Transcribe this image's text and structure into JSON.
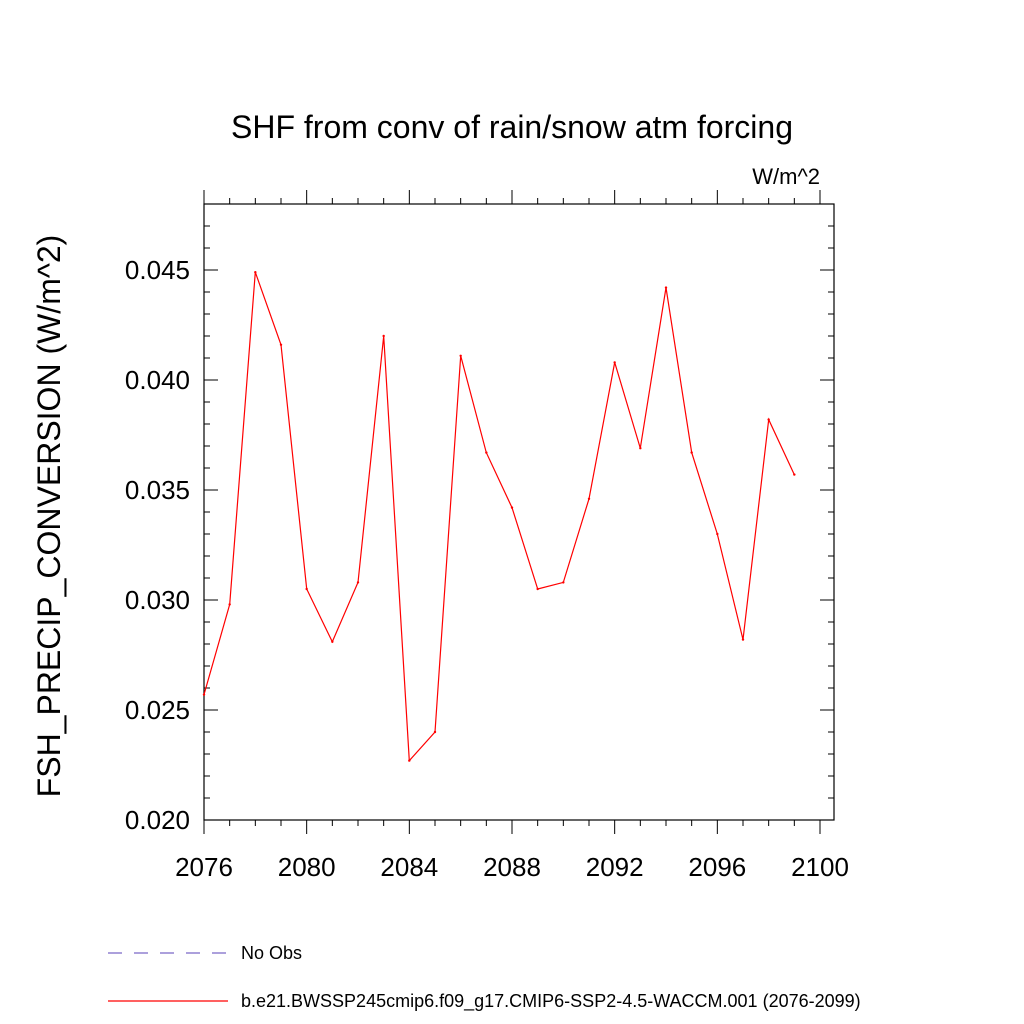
{
  "chart_data": {
    "type": "line",
    "title": "SHF from conv of rain/snow atm forcing",
    "units": "W/m^2",
    "ylabel": "FSH_PRECIP_CONVERSION  (W/m^2)",
    "xlabel": "",
    "xlim": [
      2076,
      2100
    ],
    "ylim": [
      0.02,
      0.048
    ],
    "x_ticks": [
      2076,
      2080,
      2084,
      2088,
      2092,
      2096,
      2100
    ],
    "y_ticks": [
      0.02,
      0.025,
      0.03,
      0.035,
      0.04,
      0.045
    ],
    "y_tick_labels": [
      "0.020",
      "0.025",
      "0.030",
      "0.035",
      "0.040",
      "0.045"
    ],
    "x": [
      2076,
      2077,
      2078,
      2079,
      2080,
      2081,
      2082,
      2083,
      2084,
      2085,
      2086,
      2087,
      2088,
      2089,
      2090,
      2091,
      2092,
      2093,
      2094,
      2095,
      2096,
      2097,
      2098,
      2099
    ],
    "series": [
      {
        "name": "b.e21.BWSSP245cmip6.f09_g17.CMIP6-SSP2-4.5-WACCM.001 (2076-2099)",
        "color": "#ff0000",
        "values": [
          0.0257,
          0.0298,
          0.0449,
          0.0416,
          0.0305,
          0.0281,
          0.0308,
          0.042,
          0.0227,
          0.024,
          0.0411,
          0.0367,
          0.0342,
          0.0305,
          0.0308,
          0.0346,
          0.0408,
          0.0369,
          0.0442,
          0.0367,
          0.033,
          0.0282,
          0.0382,
          0.0357
        ]
      }
    ],
    "legend": {
      "placement": "bottom-left",
      "entries": [
        {
          "label": "No Obs",
          "color": "#7b68c8",
          "style": "dashed"
        },
        {
          "label": "b.e21.BWSSP245cmip6.f09_g17.CMIP6-SSP2-4.5-WACCM.001 (2076-2099)",
          "color": "#ff0000",
          "style": "solid"
        }
      ]
    },
    "grid": false
  }
}
